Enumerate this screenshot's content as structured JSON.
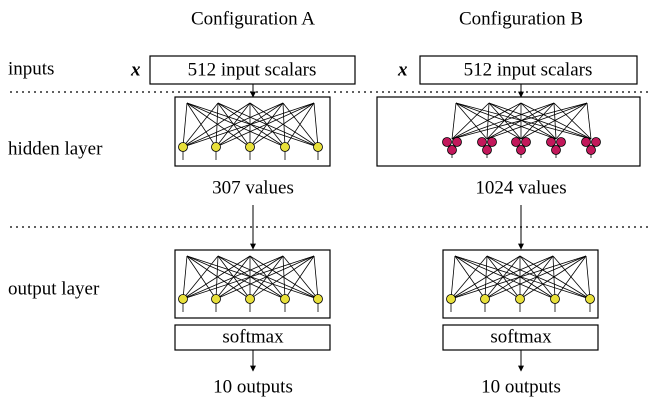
{
  "row_labels": [
    "inputs",
    "hidden layer",
    "output layer"
  ],
  "columns": [
    {
      "title": "Configuration A",
      "input_symbol": "x",
      "input_label": "512 input scalars",
      "hidden_label": "307 values",
      "softmax": "softmax",
      "output_label": "10 outputs"
    },
    {
      "title": "Configuration B",
      "input_symbol": "x",
      "input_label": "512 input scalars",
      "hidden_label": "1024 values",
      "softmax": "softmax",
      "output_label": "10 outputs"
    }
  ]
}
